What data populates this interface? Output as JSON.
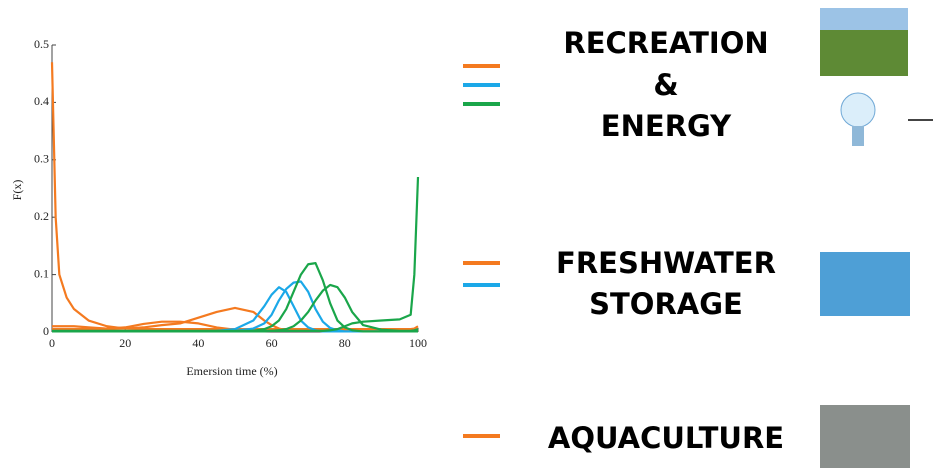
{
  "chart_data": {
    "type": "line",
    "ylabel": "F(x)",
    "xlabel": "Emersion time (%)",
    "x": [
      0,
      1,
      2,
      4,
      6,
      10,
      15,
      20,
      25,
      30,
      35,
      40,
      45,
      50,
      55,
      58,
      60,
      62,
      64,
      66,
      68,
      70,
      72,
      74,
      76,
      78,
      80,
      82,
      85,
      90,
      95,
      98,
      99,
      100
    ],
    "series": [
      {
        "color": "#f47a20",
        "values": [
          0.47,
          0.2,
          0.1,
          0.06,
          0.04,
          0.02,
          0.01,
          0.006,
          0.005,
          0.005,
          0.005,
          0.005,
          0.005,
          0.005,
          0.005,
          0.005,
          0.005,
          0.005,
          0.005,
          0.005,
          0.005,
          0.005,
          0.005,
          0.005,
          0.005,
          0.005,
          0.005,
          0.005,
          0.005,
          0.005,
          0.005,
          0.005,
          0.006,
          0.01
        ]
      },
      {
        "color": "#f47a20",
        "values": [
          0.005,
          0.005,
          0.005,
          0.005,
          0.005,
          0.005,
          0.005,
          0.006,
          0.008,
          0.012,
          0.015,
          0.025,
          0.035,
          0.042,
          0.035,
          0.02,
          0.012,
          0.006,
          0.003,
          0.002,
          0.002,
          0.002,
          0.002,
          0.002,
          0.002,
          0.002,
          0.002,
          0.002,
          0.002,
          0.002,
          0.002,
          0.002,
          0.003,
          0.005
        ]
      },
      {
        "color": "#f47a20",
        "values": [
          0.01,
          0.01,
          0.01,
          0.01,
          0.01,
          0.008,
          0.006,
          0.008,
          0.014,
          0.018,
          0.018,
          0.015,
          0.008,
          0.004,
          0.002,
          0.002,
          0.002,
          0.002,
          0.002,
          0.002,
          0.002,
          0.002,
          0.002,
          0.002,
          0.002,
          0.002,
          0.002,
          0.002,
          0.002,
          0.002,
          0.002,
          0.002,
          0.002,
          0.003
        ]
      },
      {
        "color": "#1ba8e8",
        "values": [
          0.001,
          0.001,
          0.001,
          0.001,
          0.001,
          0.001,
          0.001,
          0.001,
          0.001,
          0.001,
          0.001,
          0.001,
          0.002,
          0.005,
          0.02,
          0.045,
          0.065,
          0.078,
          0.07,
          0.045,
          0.02,
          0.008,
          0.003,
          0.001,
          0.001,
          0.001,
          0.001,
          0.001,
          0.001,
          0.001,
          0.001,
          0.001,
          0.001,
          0.001
        ]
      },
      {
        "color": "#1ba8e8",
        "values": [
          0.001,
          0.001,
          0.001,
          0.001,
          0.001,
          0.001,
          0.001,
          0.001,
          0.001,
          0.001,
          0.001,
          0.001,
          0.001,
          0.002,
          0.006,
          0.015,
          0.03,
          0.055,
          0.075,
          0.086,
          0.088,
          0.07,
          0.04,
          0.018,
          0.007,
          0.003,
          0.001,
          0.001,
          0.001,
          0.001,
          0.001,
          0.001,
          0.001,
          0.001
        ]
      },
      {
        "color": "#1aa64a",
        "values": [
          0.001,
          0.001,
          0.001,
          0.001,
          0.001,
          0.001,
          0.001,
          0.001,
          0.001,
          0.001,
          0.001,
          0.001,
          0.001,
          0.001,
          0.002,
          0.005,
          0.01,
          0.02,
          0.04,
          0.07,
          0.1,
          0.118,
          0.12,
          0.09,
          0.05,
          0.02,
          0.008,
          0.003,
          0.001,
          0.001,
          0.001,
          0.001,
          0.001,
          0.001
        ]
      },
      {
        "color": "#1aa64a",
        "values": [
          0.001,
          0.001,
          0.001,
          0.001,
          0.001,
          0.001,
          0.001,
          0.001,
          0.001,
          0.001,
          0.001,
          0.001,
          0.001,
          0.001,
          0.001,
          0.001,
          0.002,
          0.003,
          0.005,
          0.01,
          0.02,
          0.035,
          0.055,
          0.072,
          0.082,
          0.078,
          0.06,
          0.035,
          0.012,
          0.004,
          0.002,
          0.002,
          0.003,
          0.005
        ]
      },
      {
        "color": "#1aa64a",
        "values": [
          0.002,
          0.002,
          0.002,
          0.002,
          0.002,
          0.002,
          0.002,
          0.002,
          0.002,
          0.002,
          0.002,
          0.002,
          0.002,
          0.002,
          0.002,
          0.002,
          0.002,
          0.002,
          0.002,
          0.002,
          0.002,
          0.002,
          0.002,
          0.002,
          0.003,
          0.005,
          0.01,
          0.015,
          0.018,
          0.02,
          0.022,
          0.03,
          0.1,
          0.27
        ]
      }
    ],
    "xlim": [
      0,
      100
    ],
    "xticks": [
      0,
      20,
      40,
      60,
      80,
      100
    ],
    "ylim": [
      0,
      0.5
    ],
    "yticks": [
      0,
      0.1,
      0.2,
      0.3,
      0.4,
      0.5
    ]
  },
  "labels": {
    "recreation": "RECREATION",
    "amp": "&",
    "energy": "ENERGY",
    "freshwater": "FRESHWATER",
    "storage": "STORAGE",
    "aquaculture": "AQUACULTURE"
  }
}
